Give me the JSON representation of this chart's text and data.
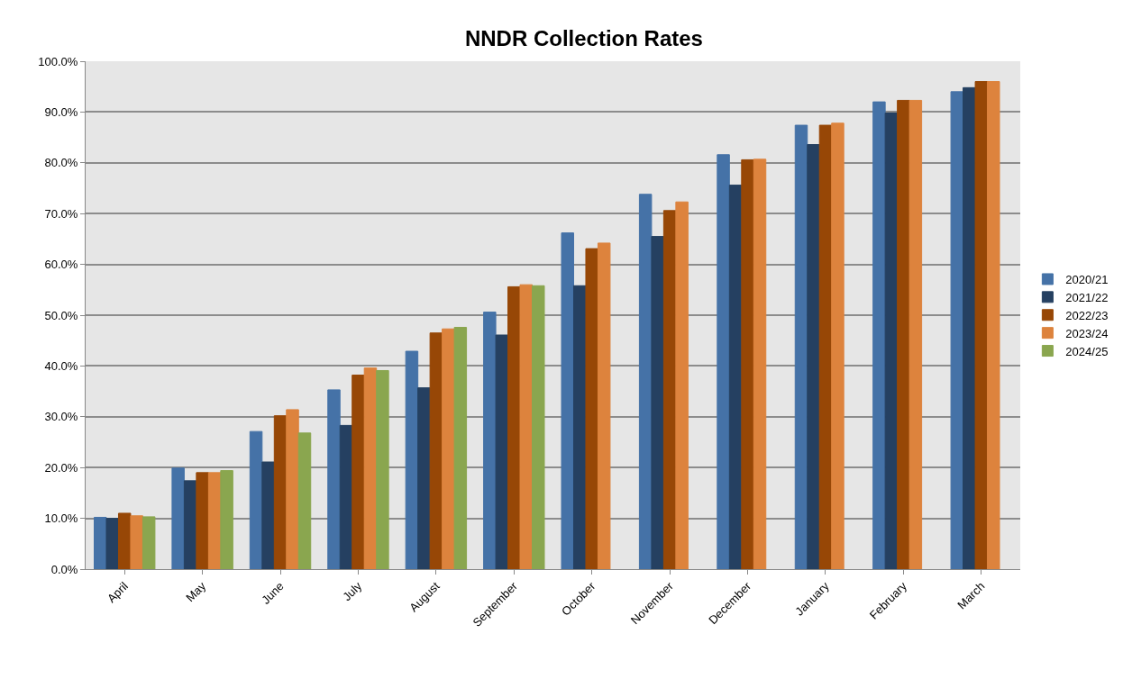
{
  "chart_data": {
    "type": "bar",
    "title": "NNDR Collection Rates",
    "categories": [
      "April",
      "May",
      "June",
      "July",
      "August",
      "September",
      "October",
      "November",
      "December",
      "January",
      "February",
      "March"
    ],
    "series": [
      {
        "name": "2020/21",
        "color": "#4572a7",
        "values": [
          10.2,
          19.9,
          27.1,
          35.3,
          42.9,
          50.6,
          66.2,
          73.8,
          81.6,
          87.4,
          92.0,
          94.0
        ]
      },
      {
        "name": "2021/22",
        "color": "#254061",
        "values": [
          10.0,
          17.4,
          21.1,
          28.3,
          35.7,
          46.1,
          55.8,
          65.5,
          75.6,
          83.6,
          89.8,
          94.8
        ]
      },
      {
        "name": "2022/23",
        "color": "#974706",
        "values": [
          11.0,
          19.0,
          30.2,
          38.2,
          46.5,
          55.6,
          63.1,
          70.6,
          80.6,
          87.4,
          92.3,
          96.0
        ]
      },
      {
        "name": "2023/24",
        "color": "#dd833d",
        "values": [
          10.5,
          19.0,
          31.4,
          39.6,
          47.3,
          56.0,
          64.2,
          72.3,
          80.7,
          87.8,
          92.3,
          96.0
        ]
      },
      {
        "name": "2024/25",
        "color": "#8aa64f",
        "values": [
          10.3,
          19.4,
          26.8,
          39.1,
          47.6,
          55.8,
          null,
          null,
          null,
          null,
          null,
          null
        ]
      }
    ],
    "ylim": [
      0,
      100
    ],
    "yticks": [
      {
        "value": 0,
        "label": "0.0%"
      },
      {
        "value": 10,
        "label": "10.0%"
      },
      {
        "value": 20,
        "label": "20.0%"
      },
      {
        "value": 30,
        "label": "30.0%"
      },
      {
        "value": 40,
        "label": "40.0%"
      },
      {
        "value": 50,
        "label": "50.0%"
      },
      {
        "value": 60,
        "label": "60.0%"
      },
      {
        "value": 70,
        "label": "70.0%"
      },
      {
        "value": 80,
        "label": "80.0%"
      },
      {
        "value": 90,
        "label": "90.0%"
      },
      {
        "value": 100,
        "label": "100.0%"
      }
    ],
    "grid": "y",
    "legend": "right"
  }
}
